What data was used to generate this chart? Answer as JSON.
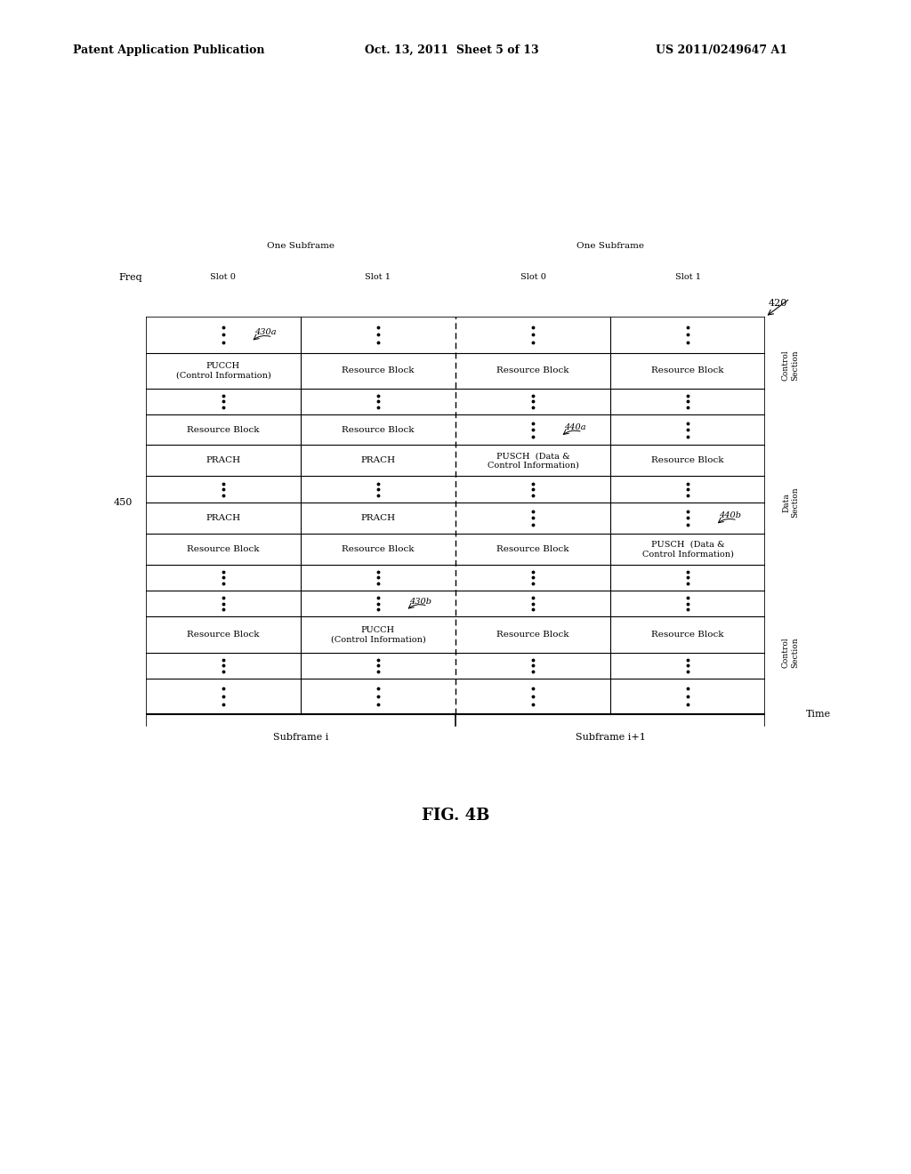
{
  "header_left": "Patent Application Publication",
  "header_mid": "Oct. 13, 2011  Sheet 5 of 13",
  "header_right": "US 2011/0249647 A1",
  "fig_label": "FIG. 4B",
  "freq_label": "Freq",
  "time_label": "Time",
  "subframe_i_label": "Subframe i",
  "subframe_i1_label": "Subframe i+1",
  "one_subframe": "One Subframe",
  "slot0": "Slot 0",
  "slot1": "Slot 1",
  "label_420": "420",
  "label_430a": "430a",
  "label_430b": "430b",
  "label_440a": "440a",
  "label_440b": "440b",
  "label_450": "450",
  "bg_color": "#ffffff",
  "line_color": "#000000"
}
